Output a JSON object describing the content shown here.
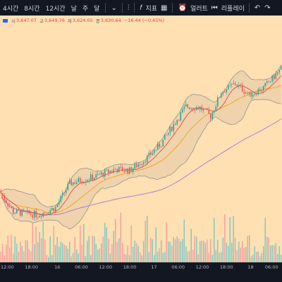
{
  "toolbar": {
    "timeframes": [
      "4시간",
      "8시간",
      "12시간",
      "날",
      "주",
      "달"
    ],
    "indicator_label": "지표",
    "alert_label": "얼러트",
    "replay_label": "리플레이",
    "icons": [
      "chevron-down-icon",
      "candles-icon",
      "indicators-icon",
      "templates-icon",
      "alert-icon",
      "replay-icon",
      "undo-icon",
      "redo-icon"
    ]
  },
  "legend": {
    "open_label": "시",
    "open_value": "3,647.07",
    "high_label": "고",
    "high_value": "3,649.76",
    "low_label": "저",
    "low_value": "3,624.05",
    "close_label": "종",
    "close_value": "3,630.64",
    "change": "−16.44 (−0.45%)"
  },
  "colors": {
    "background": "#ffe0b2",
    "up": "#26a69a",
    "down": "#ef5350",
    "bollinger": "#787b86",
    "ma_fast": "#e53935",
    "ma_slow": "#ff9800",
    "ma_long": "#9c6bd1",
    "volume_up": "#80cbc4",
    "volume_down": "#f7a1a1"
  },
  "chart_data": {
    "type": "candlestick",
    "series_count": 160,
    "start": 3420,
    "end": 3640,
    "x_tick_labels": [
      "12:00",
      "18:00",
      "16",
      "06:00",
      "12:00",
      "18:00",
      "17",
      "06:00",
      "12:00",
      "18:00",
      "18",
      "06:00"
    ],
    "x_tick_index": [
      4,
      19,
      35,
      50,
      65,
      80,
      95,
      110,
      125,
      140,
      155,
      168
    ]
  }
}
